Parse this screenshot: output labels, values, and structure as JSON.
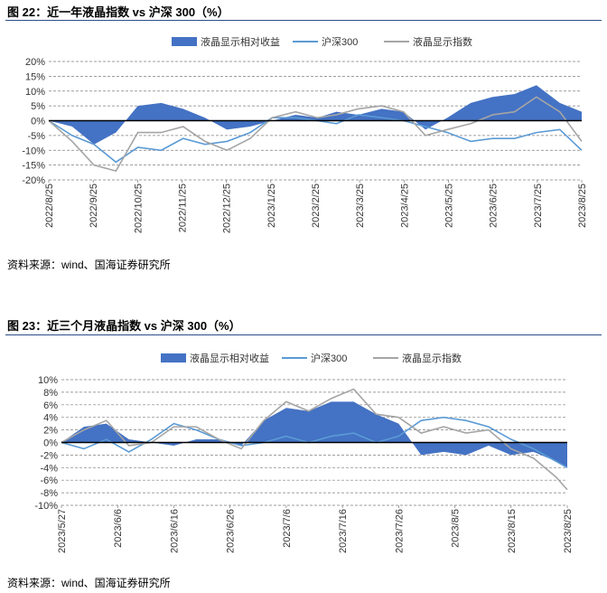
{
  "figures": [
    {
      "title": "图 22：近一年液晶指数 vs 沪深 300（%）",
      "source": "资料来源：wind、国海证券研究所"
    },
    {
      "title": "图 23：近三个月液晶指数 vs 沪深 300（%）",
      "source": "资料来源：wind、国海证券研究所"
    }
  ],
  "colors": {
    "area": "#4472c4",
    "hs300": "#5b9bd5",
    "lcd": "#a5a5a5",
    "rule": "#2c4e86"
  },
  "chart_data": [
    {
      "type": "line",
      "title": "",
      "xlabel": "",
      "ylabel": "",
      "ylim": [
        -20,
        20
      ],
      "yticks": [
        20,
        15,
        10,
        5,
        0,
        -5,
        -10,
        -15,
        -20
      ],
      "ytick_labels": [
        "20%",
        "15%",
        "10%",
        "5%",
        "0%",
        "-5%",
        "-10%",
        "-15%",
        "-20%"
      ],
      "x_tick_labels": [
        "2022/8/25",
        "2022/9/25",
        "2022/10/25",
        "2022/11/25",
        "2022/12/25",
        "2023/1/25",
        "2023/2/25",
        "2023/3/25",
        "2023/4/25",
        "2023/5/25",
        "2023/6/25",
        "2023/7/25",
        "2023/8/25"
      ],
      "x_start": "2022-08-25",
      "x_end": "2023-08-25",
      "legend": "top",
      "grid": "horizontal dashed",
      "x": [
        "2022-08-25",
        "2022-09-10",
        "2022-09-25",
        "2022-10-10",
        "2022-10-25",
        "2022-11-10",
        "2022-11-25",
        "2022-12-10",
        "2022-12-25",
        "2023-01-10",
        "2023-01-25",
        "2023-02-10",
        "2023-02-25",
        "2023-03-10",
        "2023-03-25",
        "2023-04-10",
        "2023-04-25",
        "2023-05-10",
        "2023-05-25",
        "2023-06-10",
        "2023-06-25",
        "2023-07-10",
        "2023-07-25",
        "2023-08-10",
        "2023-08-25"
      ],
      "series": [
        {
          "name": "液晶显示相对收益",
          "kind": "area",
          "values": [
            0,
            -2,
            -8,
            -4,
            5,
            6,
            4,
            1,
            -3,
            -2,
            0,
            2,
            1,
            3,
            2,
            4,
            3,
            -3,
            1,
            6,
            8,
            9,
            12,
            6,
            3
          ]
        },
        {
          "name": "沪深300",
          "kind": "line",
          "values": [
            0,
            -5,
            -8,
            -14,
            -9,
            -10,
            -6,
            -8,
            -7,
            -4,
            1,
            1,
            0,
            -1,
            2,
            1,
            0,
            -2,
            -4,
            -7,
            -6,
            -6,
            -4,
            -3,
            -10
          ]
        },
        {
          "name": "液晶显示指数",
          "kind": "line",
          "values": [
            0,
            -7,
            -15,
            -17,
            -4,
            -4,
            -2,
            -7,
            -10,
            -6,
            1,
            3,
            1,
            2,
            4,
            5,
            3,
            -5,
            -3,
            -1,
            2,
            3,
            8,
            3,
            -7
          ]
        }
      ]
    },
    {
      "type": "line",
      "title": "",
      "xlabel": "",
      "ylabel": "",
      "ylim": [
        -10,
        10
      ],
      "yticks": [
        10,
        8,
        6,
        4,
        2,
        0,
        -2,
        -4,
        -6,
        -8,
        -10
      ],
      "ytick_labels": [
        "10%",
        "8%",
        "6%",
        "4%",
        "2%",
        "0%",
        "-2%",
        "-4%",
        "-6%",
        "-8%",
        "-10%"
      ],
      "x_tick_labels": [
        "2023/5/27",
        "2023/6/6",
        "2023/6/16",
        "2023/6/26",
        "2023/7/6",
        "2023/7/16",
        "2023/7/26",
        "2023/8/5",
        "2023/8/15",
        "2023/8/25"
      ],
      "x_start": "2023-05-27",
      "x_end": "2023-08-25",
      "legend": "top",
      "grid": "horizontal dashed",
      "x": [
        "2023-05-27",
        "2023-05-31",
        "2023-06-04",
        "2023-06-08",
        "2023-06-12",
        "2023-06-16",
        "2023-06-20",
        "2023-06-24",
        "2023-06-28",
        "2023-07-02",
        "2023-07-06",
        "2023-07-10",
        "2023-07-14",
        "2023-07-18",
        "2023-07-22",
        "2023-07-26",
        "2023-07-30",
        "2023-08-03",
        "2023-08-07",
        "2023-08-11",
        "2023-08-15",
        "2023-08-19",
        "2023-08-23",
        "2023-08-25"
      ],
      "series": [
        {
          "name": "液晶显示相对收益",
          "kind": "area",
          "values": [
            0,
            2.5,
            3,
            0.5,
            0,
            -0.5,
            0.5,
            0.5,
            -0.5,
            3.5,
            5.5,
            5,
            6.5,
            6.5,
            4.5,
            3,
            -2,
            -1.5,
            -2,
            -0.5,
            -2,
            -1.5,
            -3,
            -4
          ]
        },
        {
          "name": "沪深300",
          "kind": "line",
          "values": [
            0,
            -1,
            0.5,
            -1.5,
            0.5,
            3,
            2,
            0.5,
            -0.5,
            0,
            1,
            0,
            1,
            1.5,
            0,
            1,
            3.5,
            4,
            3.5,
            2.5,
            0.5,
            -1,
            -3,
            -4
          ]
        },
        {
          "name": "液晶显示指数",
          "kind": "line",
          "values": [
            0,
            2,
            3.5,
            -0.5,
            0,
            2.5,
            2.5,
            0.5,
            -1,
            3.5,
            6.5,
            5,
            7,
            8.5,
            4.5,
            4,
            1.5,
            2.5,
            1.5,
            2,
            -1,
            -2.5,
            -5.5,
            -7.5
          ]
        }
      ]
    }
  ]
}
